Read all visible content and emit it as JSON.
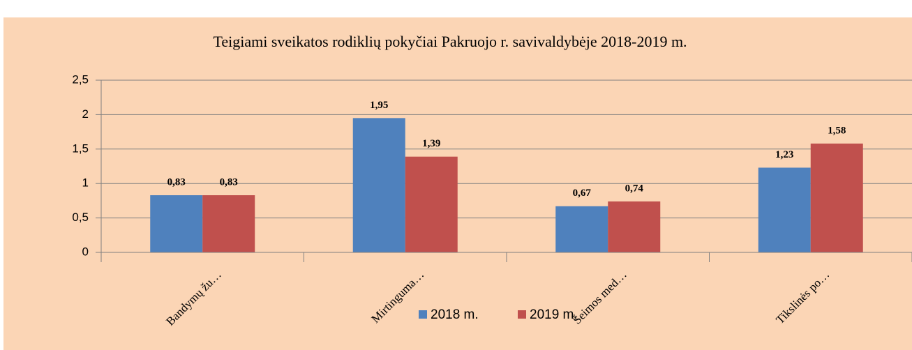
{
  "chart_data": {
    "type": "bar",
    "title": "Teigiami sveikatos rodiklių pokyčiai Pakruojo r. savivaldybėje 2018-2019 m.",
    "categories": [
      "Bandymų žu…",
      "Mirtinguma…",
      "Šeimos med…",
      "Tikslinės po…"
    ],
    "series": [
      {
        "name": "2018 m.",
        "color": "#4F81BD",
        "values": [
          0.83,
          1.95,
          0.67,
          1.23
        ],
        "value_labels": [
          "0,83",
          "1,95",
          "0,67",
          "1,23"
        ]
      },
      {
        "name": "2019 m.",
        "color": "#C0504D",
        "values": [
          0.83,
          1.39,
          0.74,
          1.58
        ],
        "value_labels": [
          "0,83",
          "1,39",
          "0,74",
          "1,58"
        ]
      }
    ],
    "ylim": [
      0,
      2.5
    ],
    "yticks": [
      0,
      {
        "value": 0.5,
        "label": "0,5"
      },
      1,
      {
        "value": 1.5,
        "label": "1,5"
      },
      2,
      {
        "value": 2.5,
        "label": "2,5"
      }
    ],
    "grid": true,
    "legend": "bottom"
  }
}
